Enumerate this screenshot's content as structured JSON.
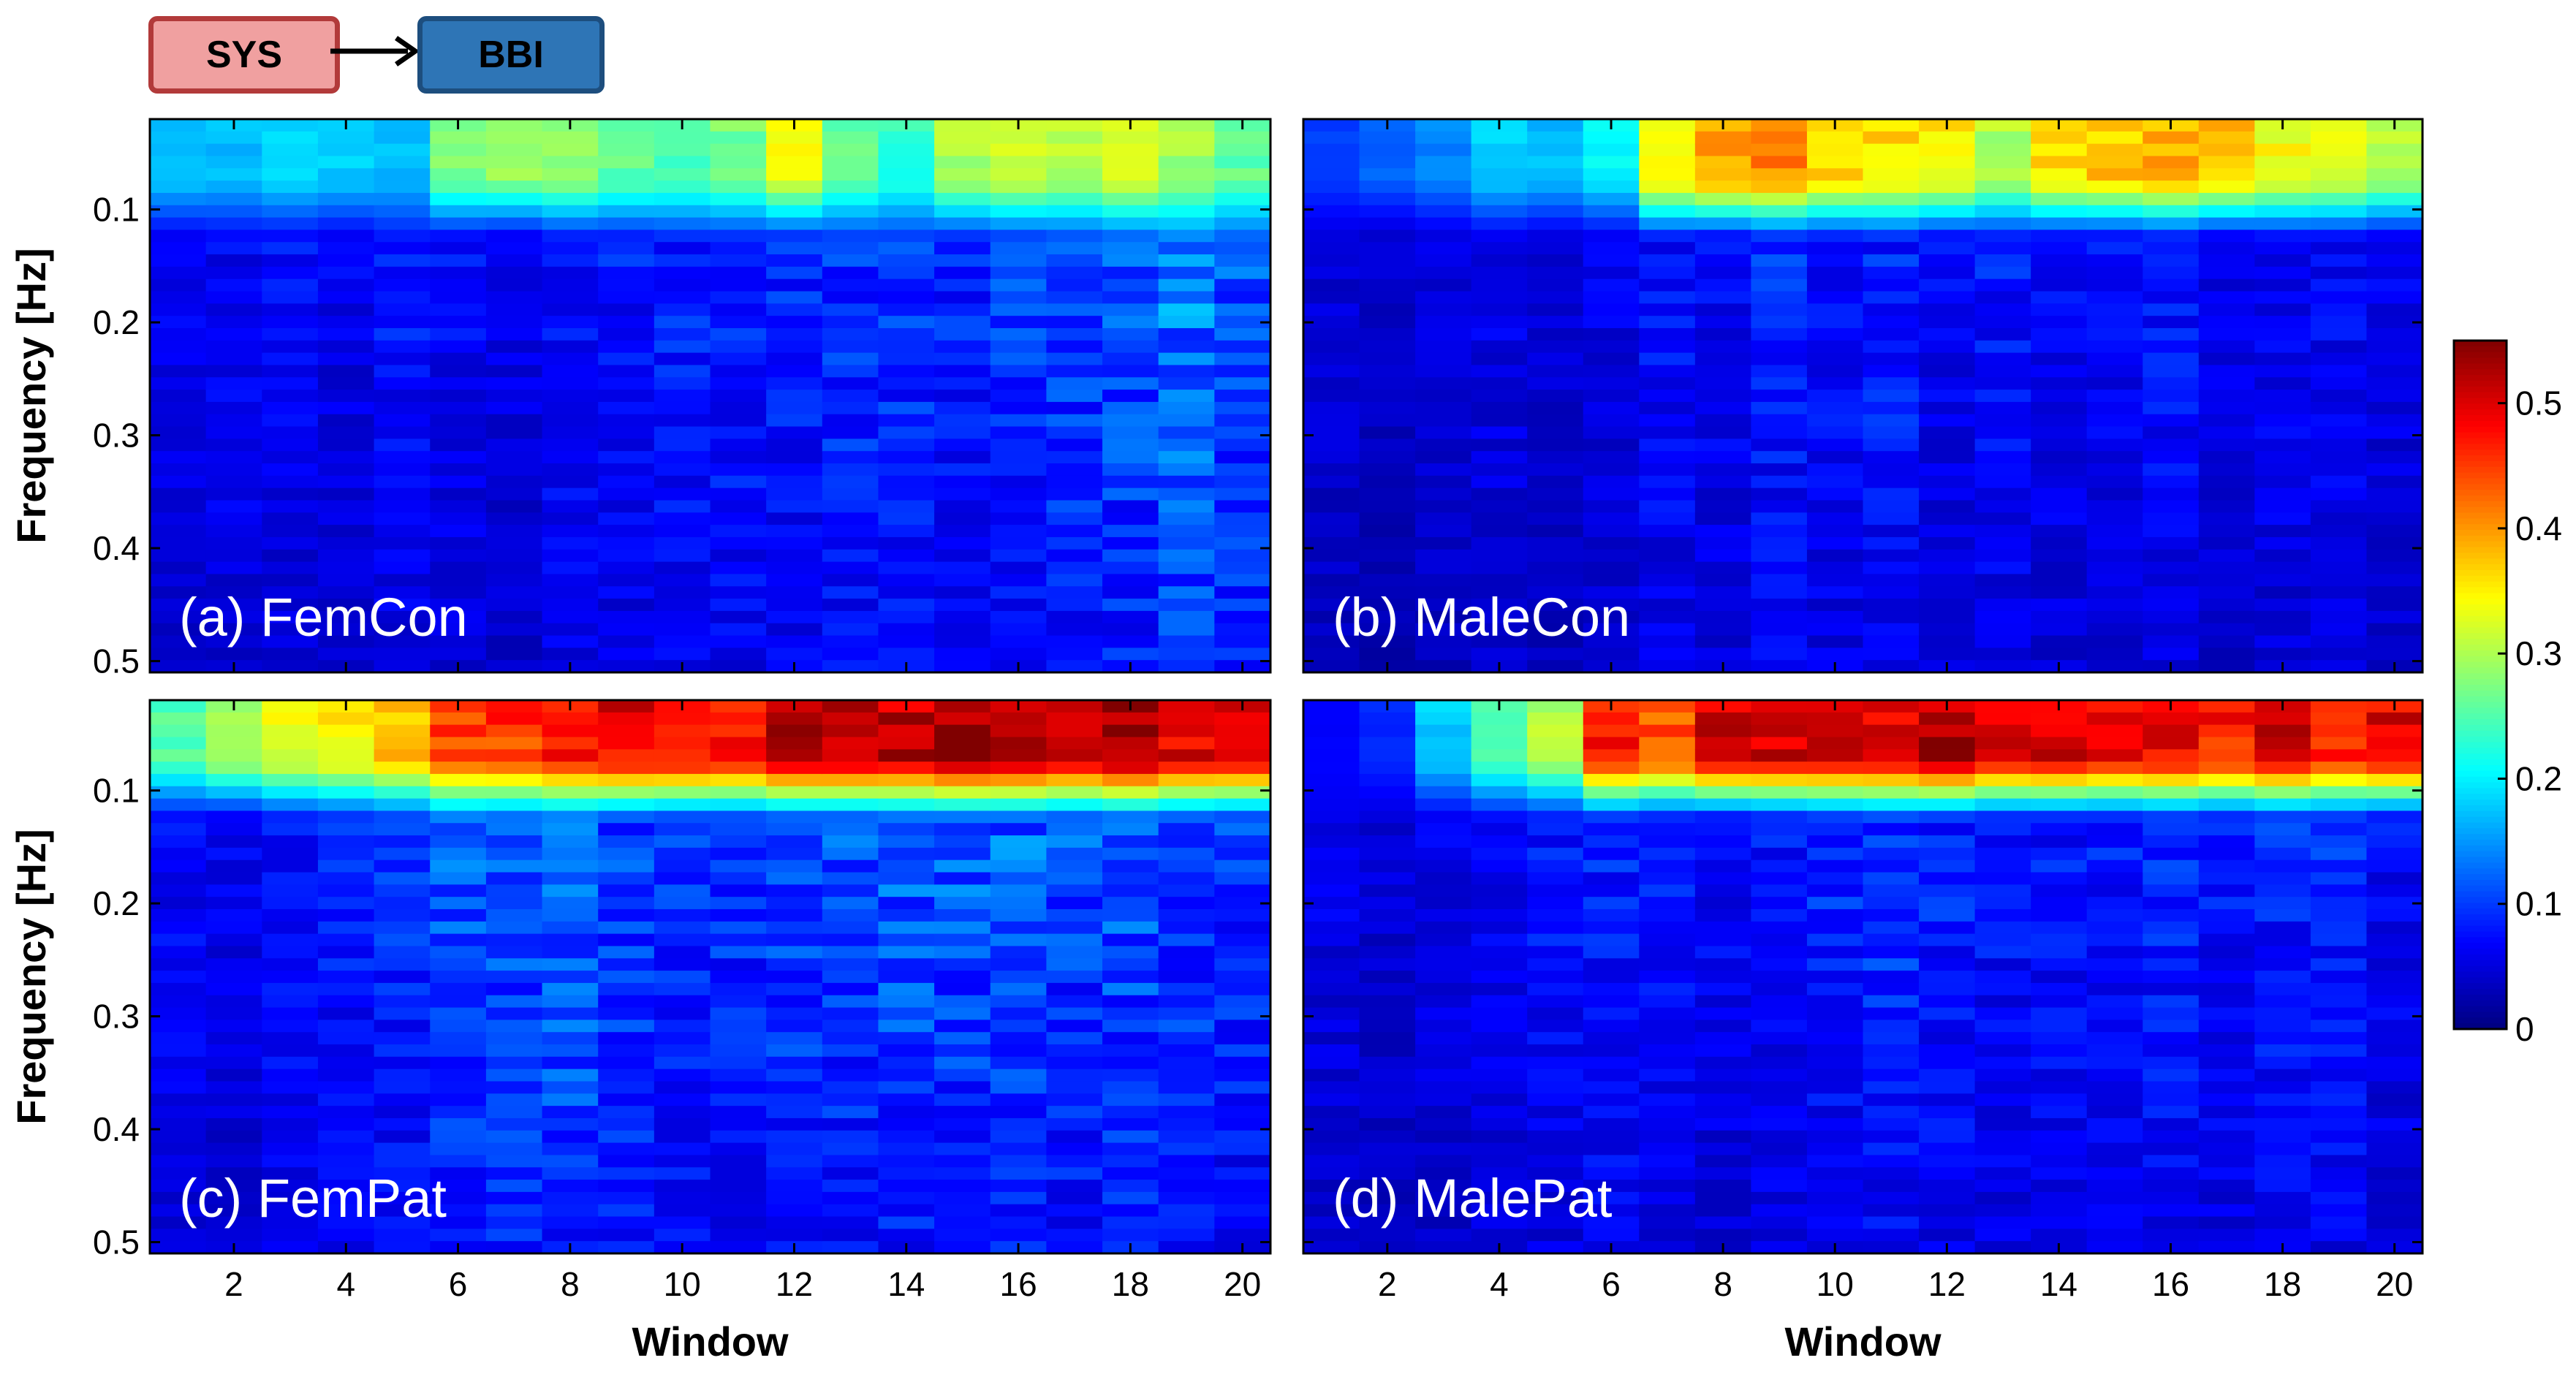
{
  "flow": {
    "from": "SYS",
    "to": "BBI"
  },
  "chart_data": {
    "type": "heatmap",
    "colormap": "jet",
    "colorbar": {
      "min": 0,
      "max": 0.55,
      "ticks": [
        "0",
        "0.1",
        "0.2",
        "0.3",
        "0.4",
        "0.5"
      ]
    },
    "x": {
      "label": "Window",
      "range": [
        0.5,
        20.5
      ],
      "ticks": [
        "2",
        "4",
        "6",
        "8",
        "10",
        "12",
        "14",
        "16",
        "18",
        "20"
      ]
    },
    "y": {
      "label": "Frequency [Hz]",
      "range": [
        0.02,
        0.51
      ],
      "ticks": [
        "0.1",
        "0.2",
        "0.3",
        "0.4",
        "0.5"
      ],
      "reversed": true
    },
    "panels": [
      {
        "label": "(a) FemCon",
        "lf_peak": [
          0.18,
          0.17,
          0.19,
          0.18,
          0.17,
          0.27,
          0.28,
          0.29,
          0.26,
          0.25,
          0.27,
          0.33,
          0.26,
          0.23,
          0.3,
          0.32,
          0.3,
          0.33,
          0.29,
          0.26
        ],
        "bg": [
          0.06,
          0.07,
          0.07,
          0.06,
          0.08,
          0.07,
          0.06,
          0.08,
          0.08,
          0.09,
          0.09,
          0.09,
          0.1,
          0.1,
          0.09,
          0.1,
          0.11,
          0.12,
          0.14,
          0.12
        ]
      },
      {
        "label": "(b) MaleCon",
        "lf_peak": [
          0.1,
          0.12,
          0.14,
          0.18,
          0.17,
          0.2,
          0.36,
          0.4,
          0.41,
          0.37,
          0.36,
          0.35,
          0.3,
          0.36,
          0.37,
          0.39,
          0.37,
          0.34,
          0.33,
          0.3
        ],
        "bg": [
          0.05,
          0.04,
          0.05,
          0.06,
          0.05,
          0.06,
          0.08,
          0.07,
          0.09,
          0.08,
          0.09,
          0.07,
          0.08,
          0.07,
          0.07,
          0.08,
          0.06,
          0.07,
          0.07,
          0.06
        ]
      },
      {
        "label": "(c) FemPat",
        "lf_peak": [
          0.25,
          0.3,
          0.33,
          0.35,
          0.38,
          0.44,
          0.45,
          0.47,
          0.49,
          0.49,
          0.48,
          0.52,
          0.52,
          0.51,
          0.54,
          0.53,
          0.51,
          0.54,
          0.5,
          0.5
        ],
        "bg": [
          0.07,
          0.06,
          0.08,
          0.09,
          0.1,
          0.13,
          0.12,
          0.13,
          0.11,
          0.1,
          0.1,
          0.11,
          0.11,
          0.12,
          0.12,
          0.12,
          0.11,
          0.12,
          0.11,
          0.1
        ]
      },
      {
        "label": "(d) MalePat",
        "lf_peak": [
          0.07,
          0.09,
          0.18,
          0.25,
          0.3,
          0.47,
          0.44,
          0.5,
          0.5,
          0.5,
          0.5,
          0.53,
          0.49,
          0.5,
          0.48,
          0.49,
          0.47,
          0.5,
          0.46,
          0.49
        ],
        "bg": [
          0.06,
          0.05,
          0.06,
          0.07,
          0.08,
          0.09,
          0.08,
          0.07,
          0.08,
          0.09,
          0.1,
          0.09,
          0.08,
          0.08,
          0.08,
          0.09,
          0.08,
          0.09,
          0.09,
          0.07
        ]
      }
    ]
  }
}
